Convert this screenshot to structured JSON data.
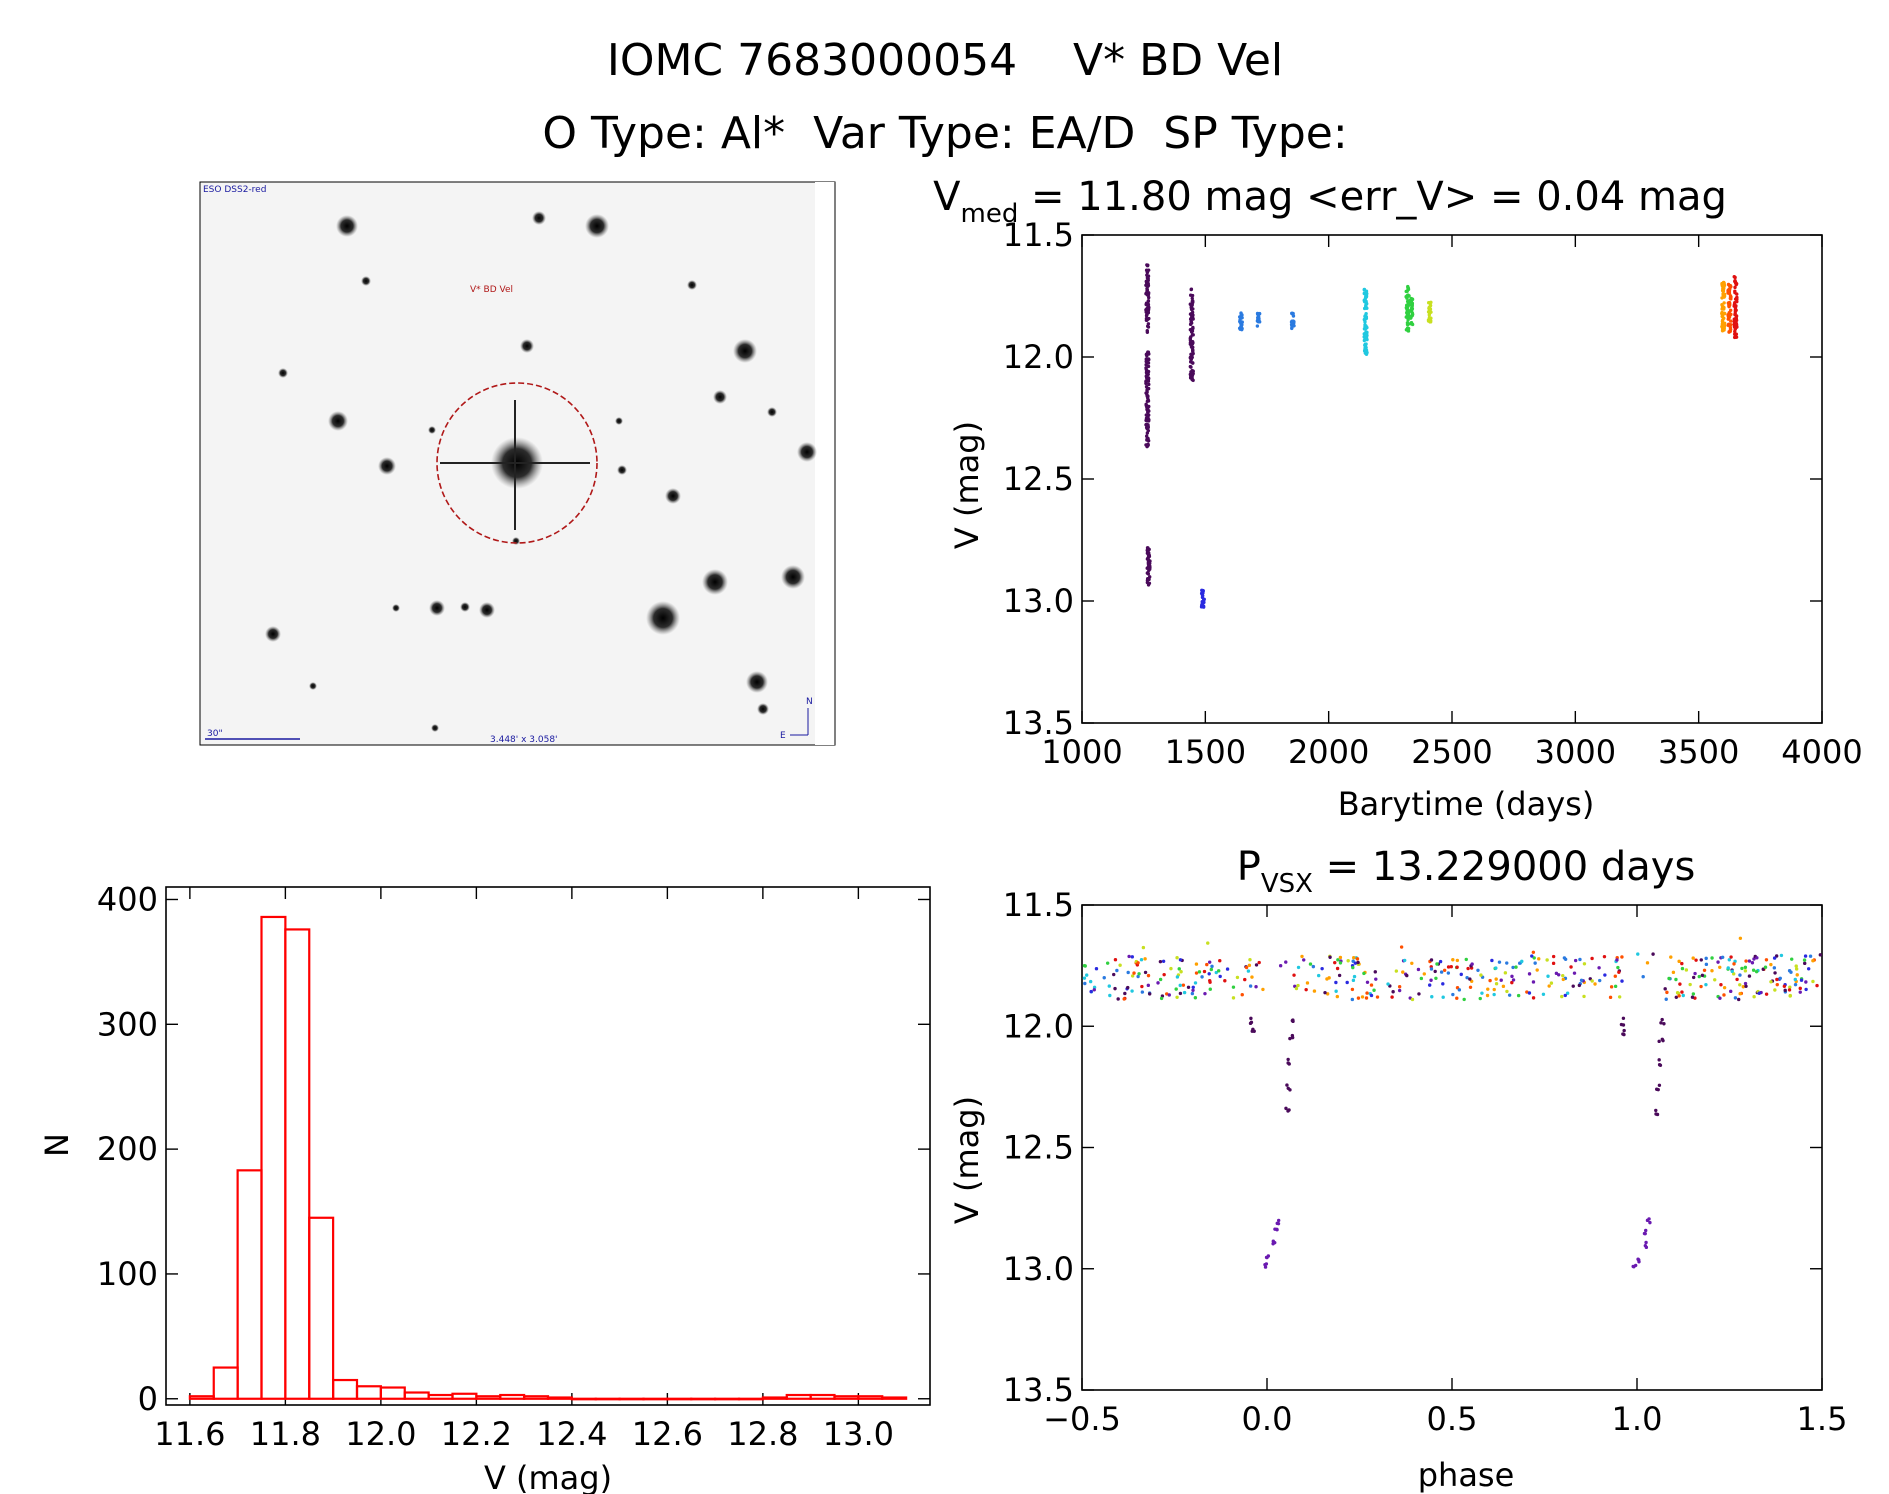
{
  "header": {
    "line1": "IOMC 7683000054    V* BD Vel",
    "line2": "O Type: Al*  Var Type: EA/D  SP Type:"
  },
  "image_panel": {
    "survey_label": "ESO DSS2-red",
    "target_label": "V* BD Vel",
    "scale_label": "30\"",
    "fov_label": "3.448' x 3.058'",
    "north_label": "N",
    "east_label": "E"
  },
  "light_curve": {
    "title_prefix": "V",
    "title_sub": "med",
    "title_rest": " = 11.80 mag <err_V> = 0.04 mag",
    "xlabel": "Barytime (days)",
    "ylabel": "V (mag)"
  },
  "phase_plot": {
    "title_prefix": "P",
    "title_sub": "VSX",
    "title_rest": " = 13.229000 days",
    "xlabel": "phase",
    "ylabel": "V (mag)"
  },
  "histogram": {
    "xlabel": "V (mag)",
    "ylabel": "N"
  },
  "colors": {
    "hist": "#ff0000",
    "circle": "#b01818",
    "scale_bar": "#1a1aa0",
    "palette": [
      "#4a0a5a",
      "#6a1ab0",
      "#2a2ae0",
      "#2a7ae0",
      "#20c8e0",
      "#30d040",
      "#c8e020",
      "#ffa000",
      "#ff5000",
      "#e01010"
    ]
  },
  "chart_data": [
    {
      "type": "scatter",
      "title": "V_med = 11.80 mag <err_V> = 0.04 mag",
      "xlabel": "Barytime (days)",
      "ylabel": "V (mag)",
      "xlim": [
        1000,
        4000
      ],
      "ylim": [
        13.5,
        11.5
      ],
      "xticks": [
        1000,
        1500,
        2000,
        2500,
        3000,
        3500,
        4000
      ],
      "yticks": [
        11.5,
        12.0,
        12.5,
        13.0,
        13.5
      ],
      "clusters": [
        {
          "x": 1265,
          "ylo": 11.62,
          "yhi": 11.9,
          "color": 0
        },
        {
          "x": 1265,
          "ylo": 11.97,
          "yhi": 12.37,
          "color": 0
        },
        {
          "x": 1270,
          "ylo": 12.78,
          "yhi": 12.94,
          "color": 0
        },
        {
          "x": 1445,
          "ylo": 11.72,
          "yhi": 12.1,
          "color": 0
        },
        {
          "x": 1490,
          "ylo": 12.95,
          "yhi": 13.03,
          "color": 2
        },
        {
          "x": 1645,
          "ylo": 11.82,
          "yhi": 11.89,
          "color": 3
        },
        {
          "x": 1715,
          "ylo": 11.82,
          "yhi": 11.88,
          "color": 3
        },
        {
          "x": 1855,
          "ylo": 11.82,
          "yhi": 11.89,
          "color": 3
        },
        {
          "x": 2150,
          "ylo": 11.72,
          "yhi": 11.99,
          "color": 4
        },
        {
          "x": 2320,
          "ylo": 11.71,
          "yhi": 11.9,
          "color": 5
        },
        {
          "x": 2335,
          "ylo": 11.76,
          "yhi": 11.87,
          "color": 5
        },
        {
          "x": 2410,
          "ylo": 11.76,
          "yhi": 11.86,
          "color": 6
        },
        {
          "x": 3600,
          "ylo": 11.69,
          "yhi": 11.9,
          "color": 7
        },
        {
          "x": 3625,
          "ylo": 11.7,
          "yhi": 11.9,
          "color": 8
        },
        {
          "x": 3650,
          "ylo": 11.67,
          "yhi": 11.92,
          "color": 9
        }
      ]
    },
    {
      "type": "bar",
      "title": "",
      "xlabel": "V (mag)",
      "ylabel": "N",
      "xlim": [
        11.55,
        13.15
      ],
      "ylim": [
        -5,
        410
      ],
      "xticks": [
        11.6,
        11.8,
        12.0,
        12.2,
        12.4,
        12.6,
        12.8,
        13.0
      ],
      "yticks": [
        0,
        100,
        200,
        300,
        400
      ],
      "bin_width": 0.05,
      "bin_start": 11.6,
      "values": [
        2,
        25,
        183,
        386,
        376,
        145,
        15,
        10,
        9,
        5,
        3,
        4,
        2,
        3,
        2,
        1,
        0,
        0,
        0,
        0,
        0,
        0,
        0,
        0,
        1,
        3,
        3,
        2,
        2,
        1
      ]
    },
    {
      "type": "scatter",
      "title": "P_VSX = 13.229000 days",
      "xlabel": "phase",
      "ylabel": "V (mag)",
      "xlim": [
        -0.5,
        1.5
      ],
      "ylim": [
        13.5,
        11.5
      ],
      "xticks": [
        -0.5,
        0.0,
        0.5,
        1.0,
        1.5
      ],
      "yticks": [
        11.5,
        12.0,
        12.5,
        13.0,
        13.5
      ],
      "eclipse_points": [
        {
          "phase": -0.005,
          "v": 12.99
        },
        {
          "phase": 0.0,
          "v": 12.96
        },
        {
          "phase": 0.02,
          "v": 12.9
        },
        {
          "phase": 0.025,
          "v": 12.85
        },
        {
          "phase": 0.03,
          "v": 12.8
        },
        {
          "phase": 0.055,
          "v": 12.35
        },
        {
          "phase": 0.058,
          "v": 12.25
        },
        {
          "phase": 0.062,
          "v": 12.15
        },
        {
          "phase": 0.065,
          "v": 12.05
        },
        {
          "phase": 0.068,
          "v": 11.98
        },
        {
          "phase": -0.04,
          "v": 11.98
        },
        {
          "phase": -0.035,
          "v": 12.02
        }
      ],
      "baseline": {
        "v_center": 11.8,
        "v_spread": 0.09
      }
    }
  ]
}
